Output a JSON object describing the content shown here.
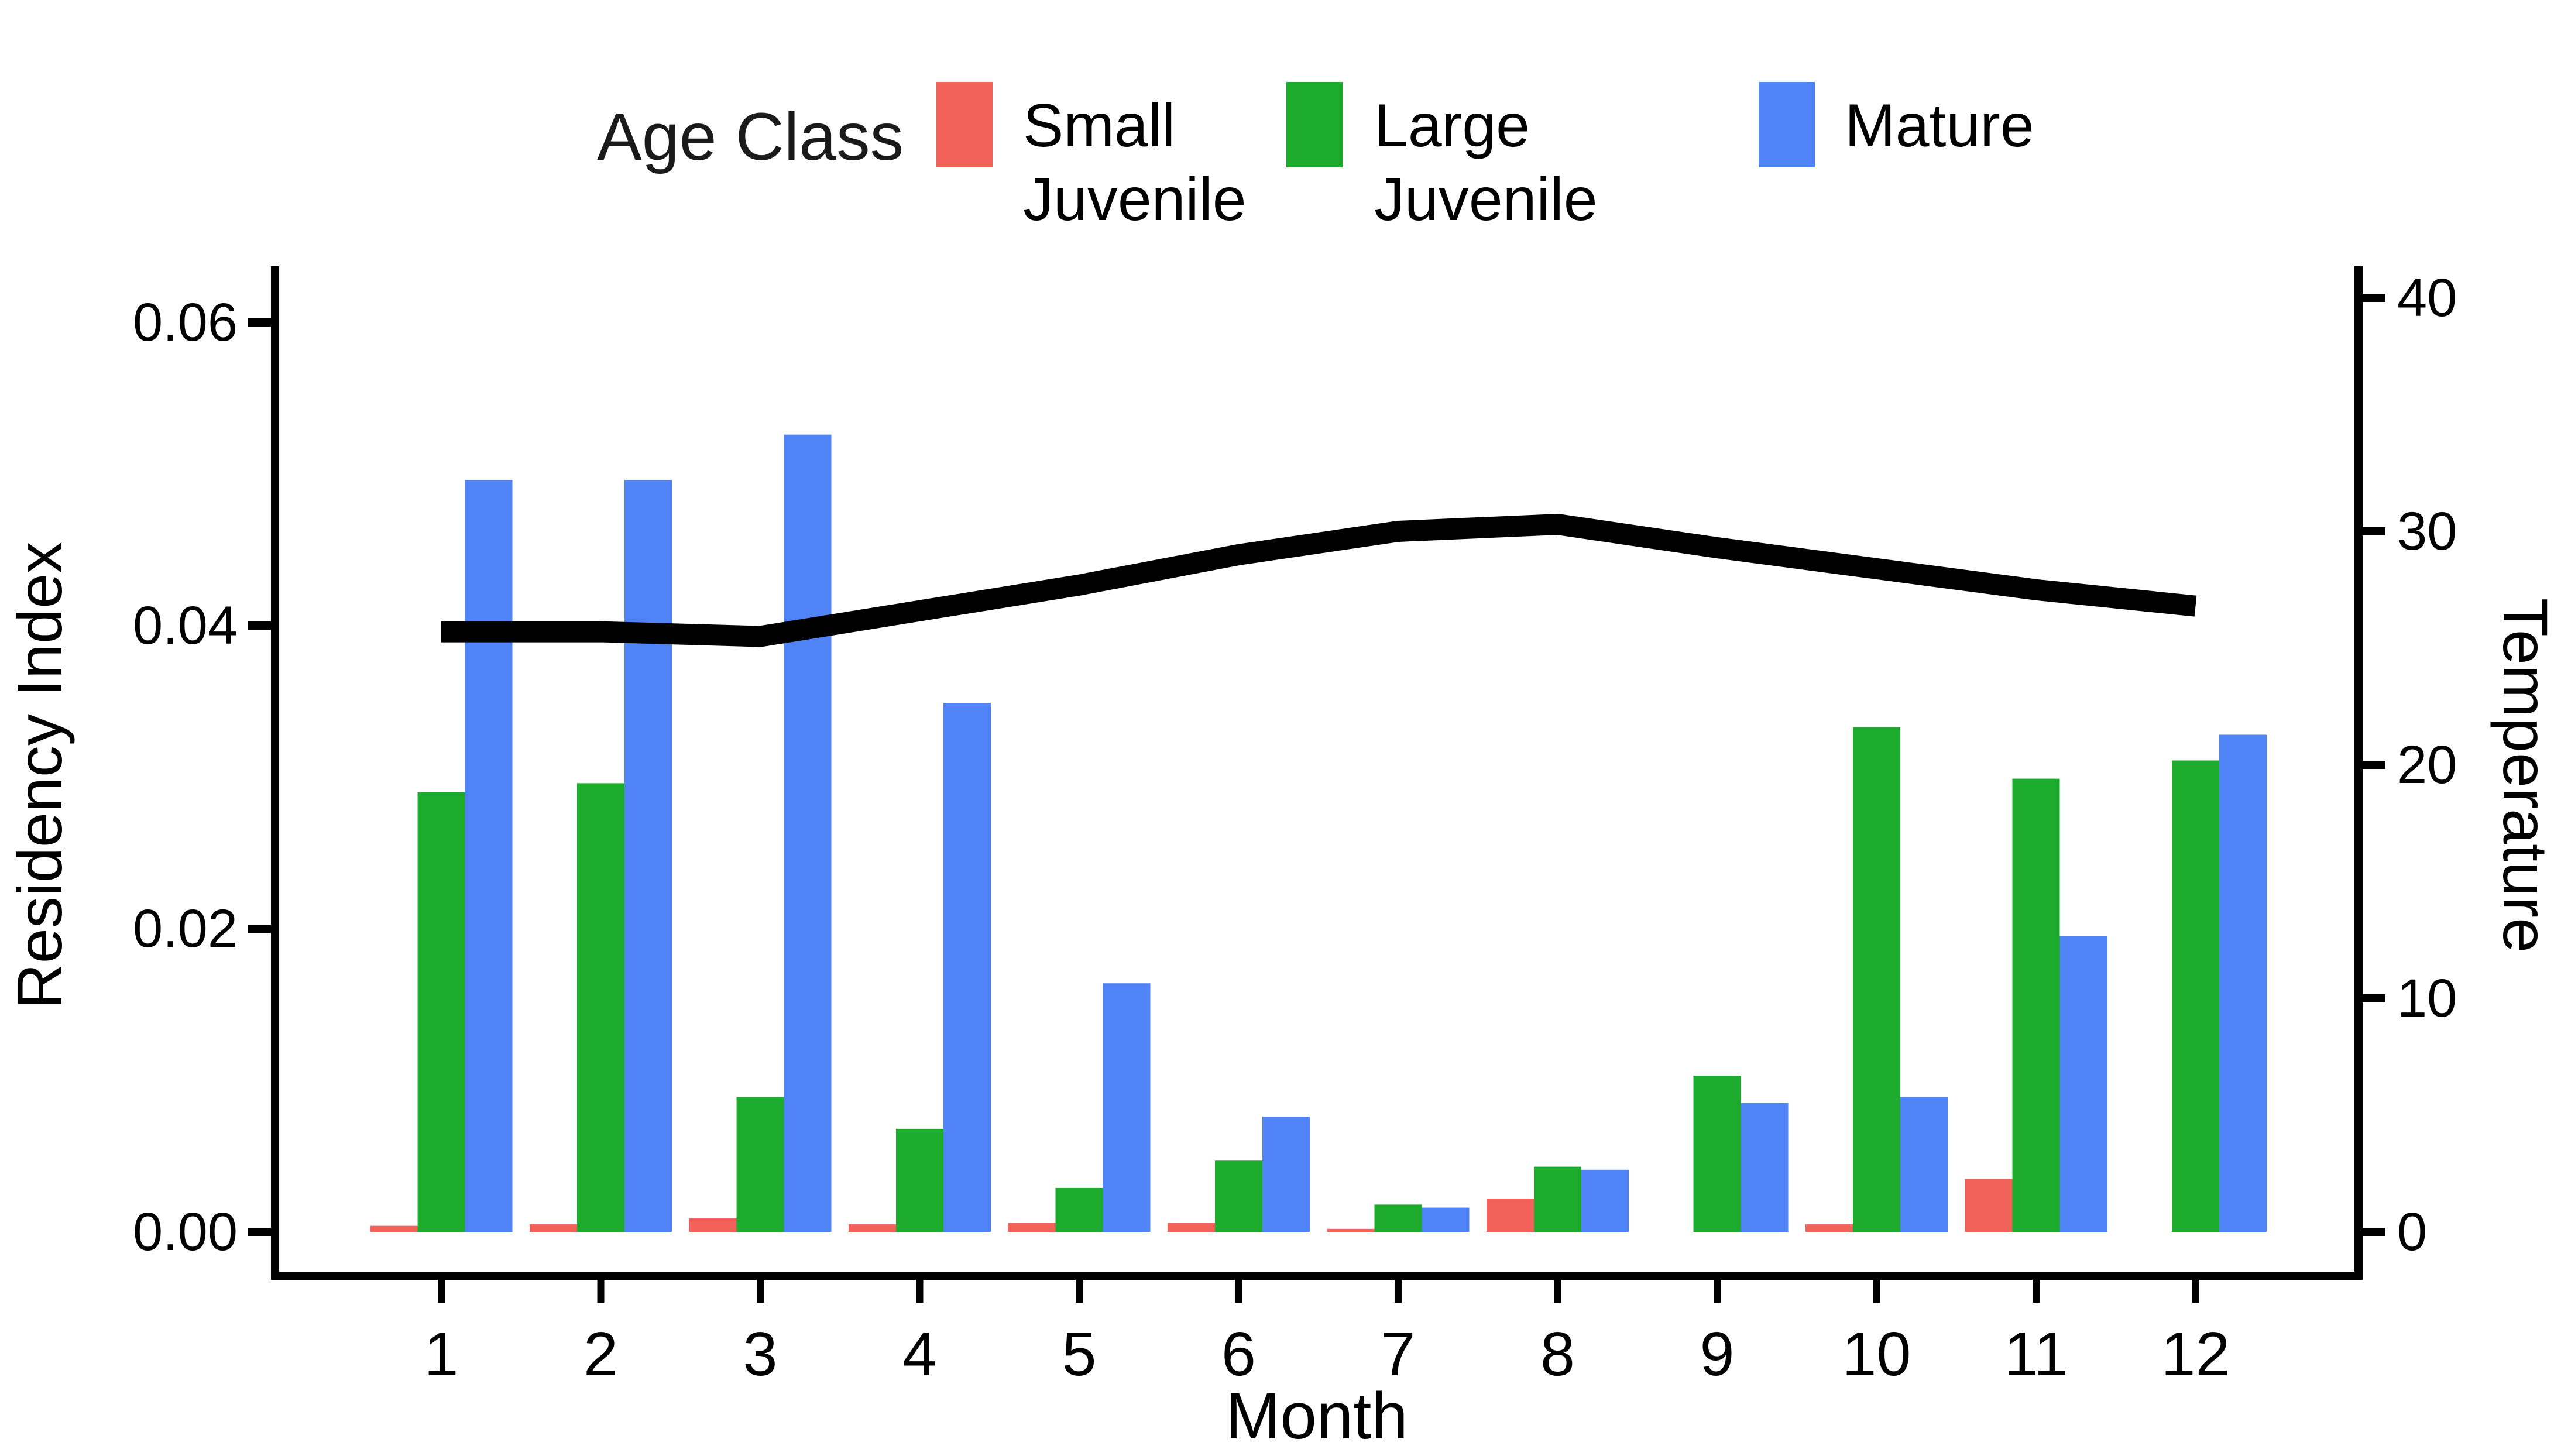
{
  "figure": {
    "legend": {
      "title": "Age Class",
      "items": [
        {
          "line1": "Small",
          "line2": "Juvenile",
          "color": "#F2615A"
        },
        {
          "line1": "Large",
          "line2": "Juvenile",
          "color": "#1DAB2D"
        },
        {
          "line1": "Mature",
          "line2": "",
          "color": "#4F83F6"
        }
      ]
    },
    "axes": {
      "left": {
        "title": "Residency Index",
        "tick_labels": [
          "0.00",
          "0.02",
          "0.04",
          "0.06"
        ],
        "tick_values": [
          0,
          0.02,
          0.04,
          0.06
        ]
      },
      "right": {
        "title": "Temperature",
        "tick_labels": [
          "0",
          "10",
          "20",
          "30",
          "40"
        ],
        "tick_values": [
          0,
          10,
          20,
          30,
          40
        ]
      },
      "bottom": {
        "title": "Month",
        "tick_labels": [
          "1",
          "2",
          "3",
          "4",
          "5",
          "6",
          "7",
          "8",
          "9",
          "10",
          "11",
          "12"
        ]
      }
    }
  },
  "chart_data": {
    "type": "bar",
    "title": "",
    "xlabel": "Month",
    "ylabel": "Residency Index",
    "y2label": "Temperature",
    "categories": [
      1,
      2,
      3,
      4,
      5,
      6,
      7,
      8,
      9,
      10,
      11,
      12
    ],
    "ylim": [
      0,
      0.0635
    ],
    "y2lim": [
      0,
      41
    ],
    "grid": false,
    "legend_position": "top",
    "series": [
      {
        "name": "Small Juvenile",
        "color": "#F2615A",
        "values": [
          0.0004,
          0.0005,
          0.0009,
          0.0005,
          0.0006,
          0.0006,
          0.0002,
          0.0022,
          0,
          0.0005,
          0.0035,
          0
        ]
      },
      {
        "name": "Large Juvenile",
        "color": "#1DAB2D",
        "values": [
          0.029,
          0.0296,
          0.0089,
          0.0068,
          0.0029,
          0.0047,
          0.0018,
          0.0043,
          0.0103,
          0.0333,
          0.0299,
          0.0311
        ]
      },
      {
        "name": "Mature",
        "color": "#4F83F6",
        "values": [
          0.0496,
          0.0496,
          0.0526,
          0.0349,
          0.0164,
          0.0076,
          0.0016,
          0.0041,
          0.0085,
          0.0089,
          0.0195,
          0.0328
        ]
      }
    ],
    "line_overlay": {
      "name": "Temperature",
      "axis": "right",
      "color": "#000000",
      "values": [
        25.7,
        25.7,
        25.5,
        26.6,
        27.7,
        29.0,
        30.0,
        30.3,
        29.3,
        28.4,
        27.5,
        26.8
      ]
    }
  }
}
